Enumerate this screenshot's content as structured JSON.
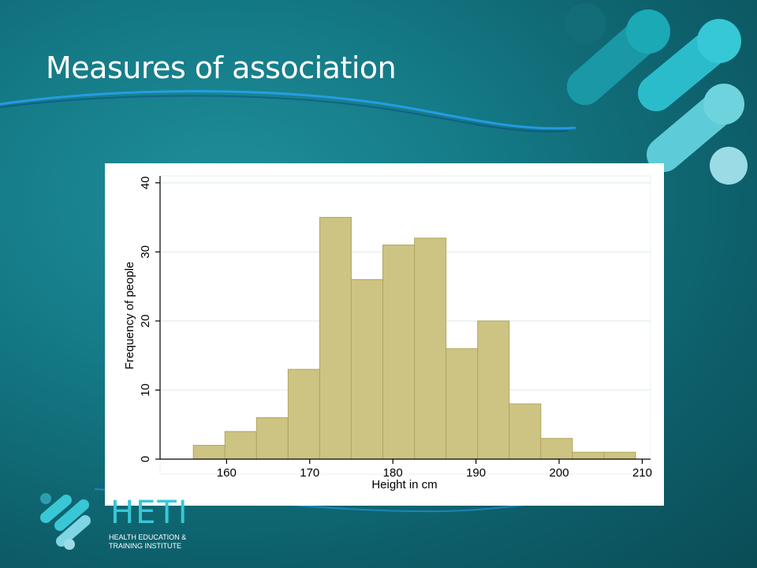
{
  "slide": {
    "title": "Measures of association"
  },
  "logo": {
    "name": "HETI",
    "subtitle_line1": "HEALTH EDUCATION &",
    "subtitle_line2": "TRAINING INSTITUTE"
  },
  "colors": {
    "bar_fill": "#cdc383",
    "bar_stroke": "#b0a660",
    "accent": "#39c7d6"
  },
  "chart_data": {
    "type": "bar",
    "title": "",
    "xlabel": "Height in cm",
    "ylabel": "Frequency of people",
    "bins_start": 156,
    "bin_width": 3.8,
    "values": [
      2,
      4,
      6,
      13,
      35,
      26,
      31,
      32,
      16,
      20,
      8,
      3,
      1,
      1
    ],
    "xlim": [
      152,
      211
    ],
    "ylim": [
      0,
      41
    ],
    "xticks": [
      160,
      170,
      180,
      190,
      200,
      210
    ],
    "yticks": [
      0,
      10,
      20,
      30,
      40
    ],
    "grid": true
  }
}
